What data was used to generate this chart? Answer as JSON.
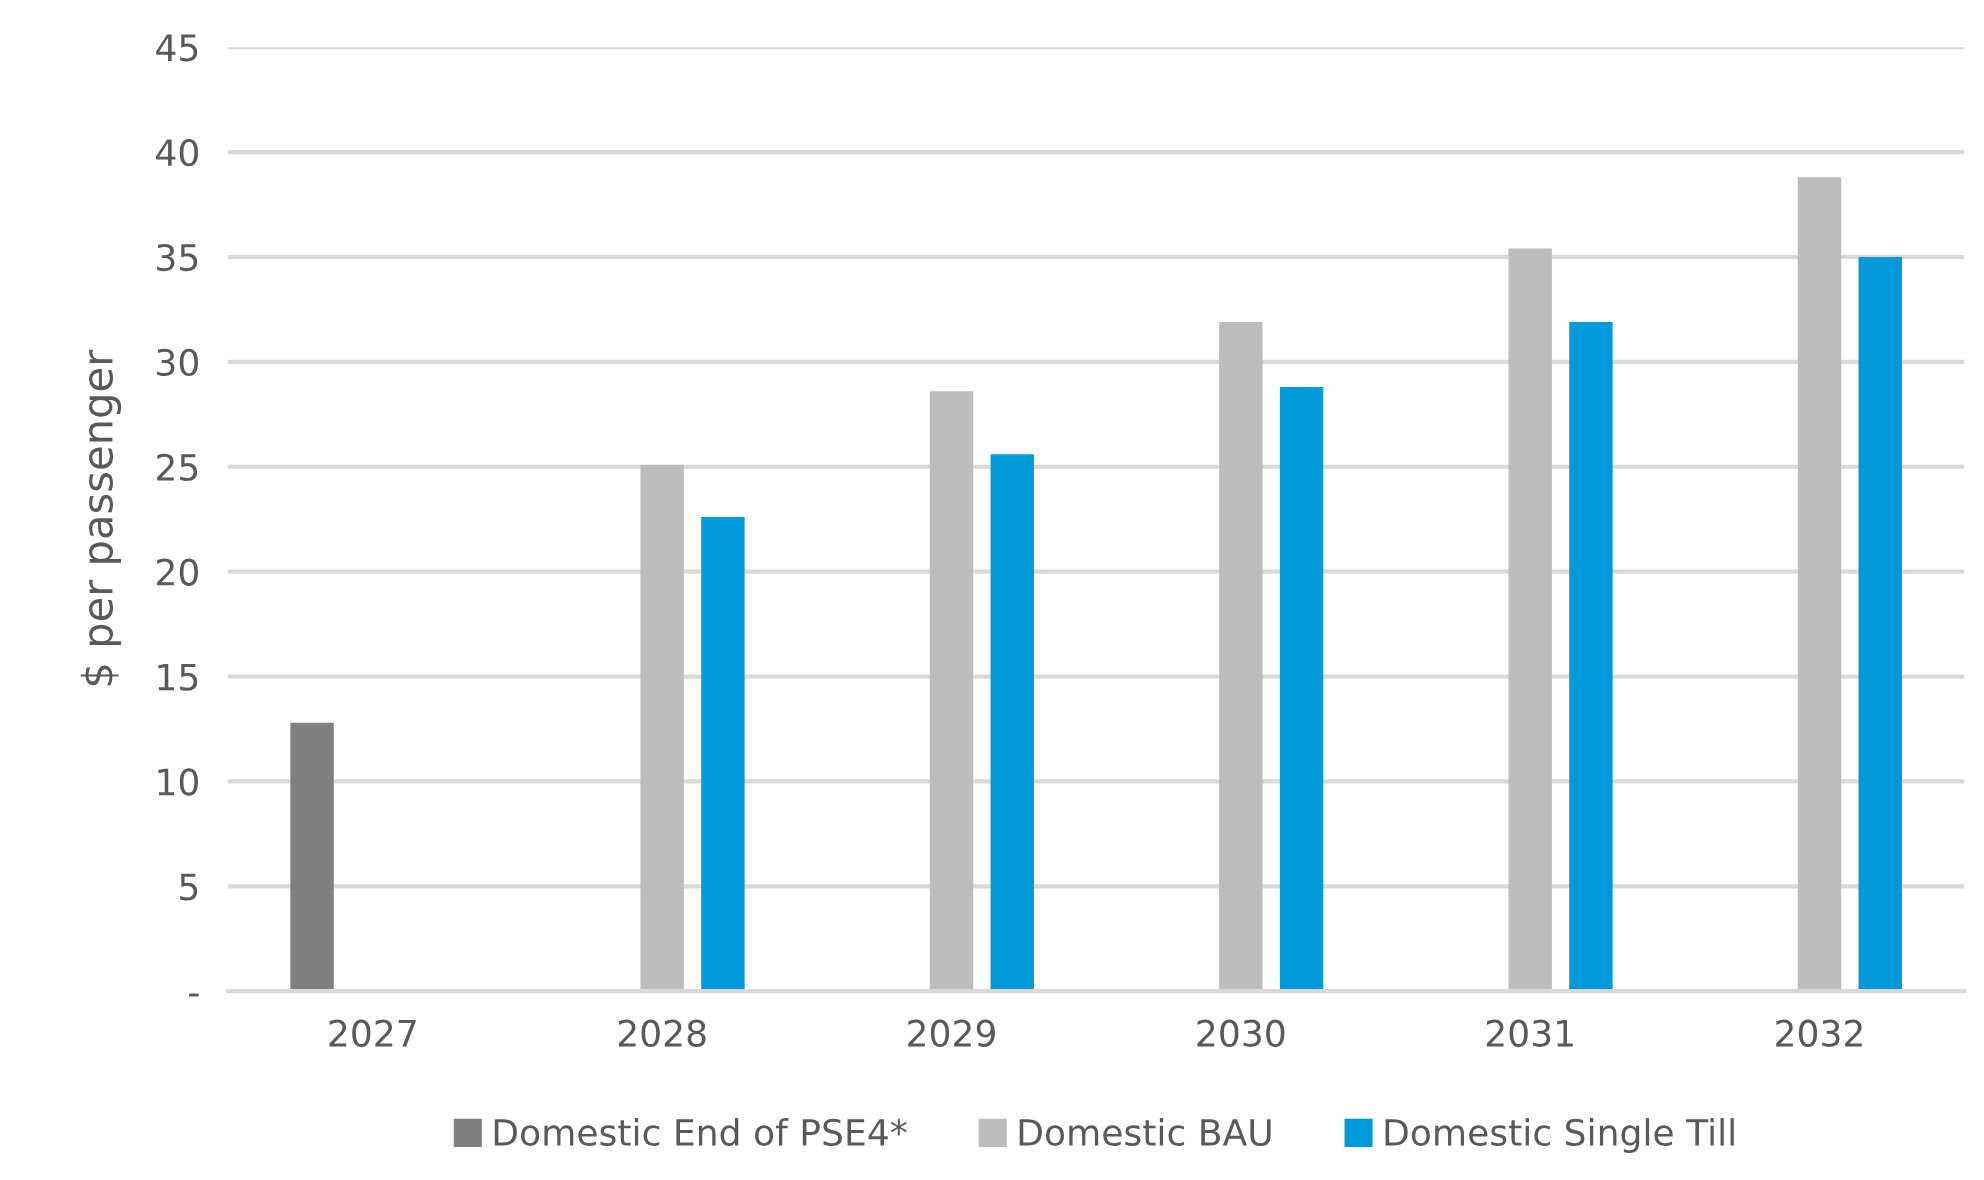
{
  "chart_data": {
    "type": "bar",
    "ylabel": "$ per passenger",
    "categories": [
      "2027",
      "2028",
      "2029",
      "2030",
      "2031",
      "2032"
    ],
    "series": [
      {
        "name": "Domestic End of PSE4*",
        "color": "#7f7f7f",
        "values": [
          12.8,
          null,
          null,
          null,
          null,
          null
        ]
      },
      {
        "name": "Domestic BAU",
        "color": "#bcbcbc",
        "values": [
          null,
          25.1,
          28.6,
          31.9,
          35.4,
          38.8
        ]
      },
      {
        "name": "Domestic Single Till",
        "color": "#009ada",
        "values": [
          null,
          22.6,
          25.6,
          28.8,
          31.9,
          35.0
        ]
      }
    ],
    "ylim": [
      0,
      45
    ],
    "yticks": [
      {
        "value": 0,
        "label": "-"
      },
      5,
      10,
      15,
      20,
      25,
      30,
      35,
      40,
      45
    ],
    "grid": "y",
    "legend": "bottom"
  }
}
